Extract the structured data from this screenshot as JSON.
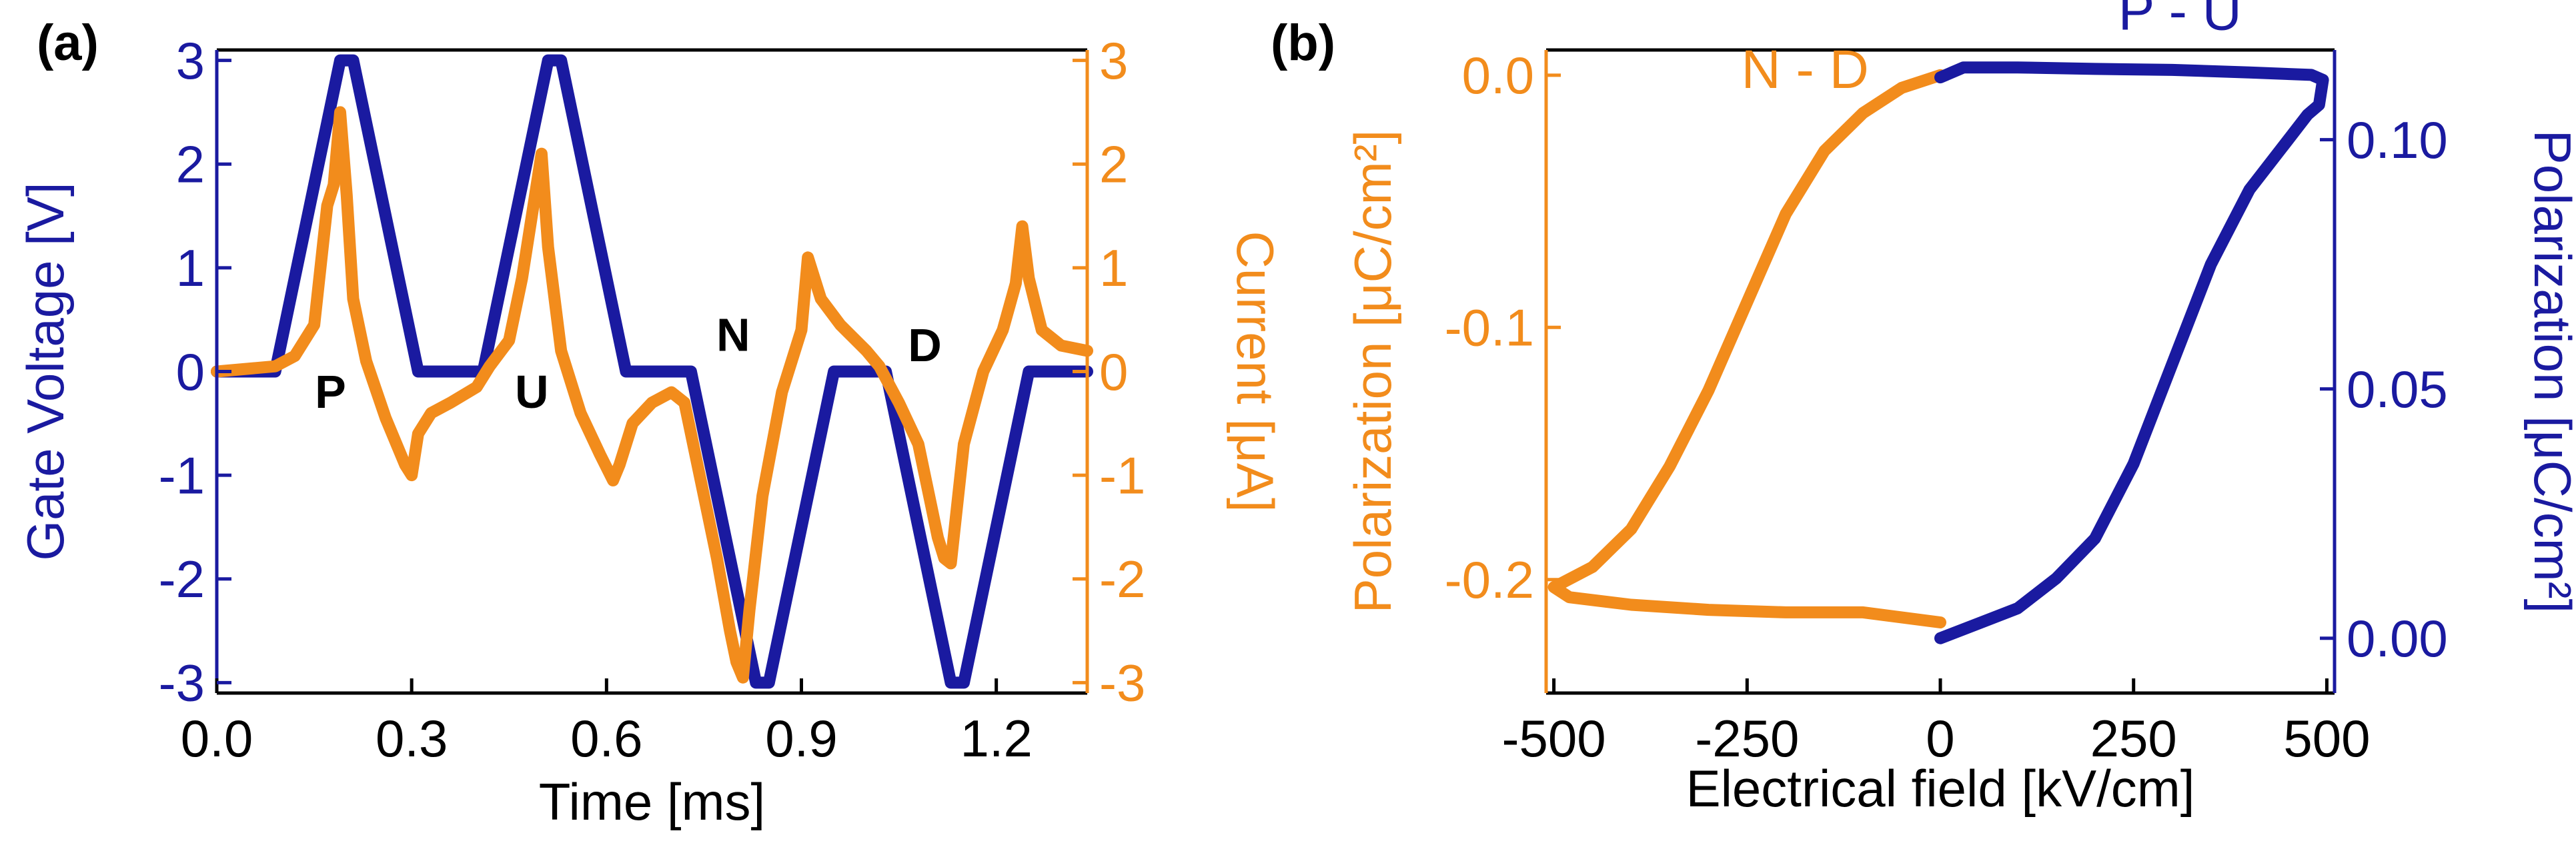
{
  "colors": {
    "blue": "#1a1aa0",
    "orange": "#f28c1c",
    "black": "#000000"
  },
  "chart_data": [
    {
      "type": "line",
      "panel_label": "(a)",
      "title": "",
      "xlabel": "Time [ms]",
      "ylabel_left": "Gate Voltage [V]",
      "ylabel_right": "Current [μA]",
      "xlim": [
        0.0,
        1.34
      ],
      "ylim_left": [
        -3.1,
        3.1
      ],
      "ylim_right": [
        -3.1,
        3.1
      ],
      "x_ticks": [
        "0.0",
        "0.3",
        "0.6",
        "0.9",
        "1.2"
      ],
      "x_tick_values": [
        0.0,
        0.3,
        0.6,
        0.9,
        1.2
      ],
      "y_ticks_left": [
        "-3",
        "-2",
        "-1",
        "0",
        "1",
        "2",
        "3"
      ],
      "y_ticks_right": [
        "-3",
        "-2",
        "-1",
        "0",
        "1",
        "2",
        "3"
      ],
      "annotations": [
        {
          "text": "P",
          "x": 0.175,
          "y": -0.35
        },
        {
          "text": "U",
          "x": 0.485,
          "y": -0.35
        },
        {
          "text": "N",
          "x": 0.795,
          "y": 0.2
        },
        {
          "text": "D",
          "x": 1.09,
          "y": 0.1
        }
      ],
      "series": [
        {
          "name": "Gate Voltage",
          "axis": "left",
          "color": "#1a1aa0",
          "x": [
            0.0,
            0.09,
            0.19,
            0.21,
            0.31,
            0.41,
            0.51,
            0.53,
            0.63,
            0.73,
            0.83,
            0.85,
            0.95,
            1.03,
            1.13,
            1.15,
            1.25,
            1.34
          ],
          "y": [
            0,
            0,
            3,
            3,
            0,
            0,
            3,
            3,
            0,
            0,
            -3,
            -3,
            0,
            0,
            -3,
            -3,
            0,
            0
          ]
        },
        {
          "name": "Current",
          "axis": "right",
          "color": "#f28c1c",
          "x": [
            0.0,
            0.09,
            0.12,
            0.15,
            0.17,
            0.18,
            0.19,
            0.2,
            0.21,
            0.23,
            0.26,
            0.29,
            0.3,
            0.31,
            0.33,
            0.36,
            0.4,
            0.42,
            0.45,
            0.47,
            0.49,
            0.5,
            0.51,
            0.53,
            0.56,
            0.59,
            0.61,
            0.62,
            0.64,
            0.67,
            0.7,
            0.72,
            0.74,
            0.77,
            0.79,
            0.8,
            0.81,
            0.82,
            0.84,
            0.87,
            0.9,
            0.91,
            0.93,
            0.96,
            1.0,
            1.02,
            1.05,
            1.08,
            1.1,
            1.11,
            1.12,
            1.13,
            1.15,
            1.18,
            1.21,
            1.23,
            1.24,
            1.25,
            1.27,
            1.3,
            1.34
          ],
          "y": [
            0.0,
            0.05,
            0.15,
            0.45,
            1.6,
            1.8,
            2.5,
            1.7,
            0.7,
            0.1,
            -0.45,
            -0.9,
            -1.0,
            -0.6,
            -0.4,
            -0.3,
            -0.15,
            0.05,
            0.3,
            0.9,
            1.7,
            2.1,
            1.2,
            0.2,
            -0.4,
            -0.8,
            -1.05,
            -0.9,
            -0.5,
            -0.3,
            -0.2,
            -0.3,
            -0.9,
            -1.8,
            -2.5,
            -2.8,
            -2.95,
            -2.3,
            -1.2,
            -0.2,
            0.4,
            1.1,
            0.7,
            0.45,
            0.2,
            0.05,
            -0.3,
            -0.7,
            -1.3,
            -1.6,
            -1.8,
            -1.85,
            -0.7,
            0.0,
            0.4,
            0.85,
            1.4,
            0.9,
            0.4,
            0.25,
            0.2
          ]
        }
      ]
    },
    {
      "type": "line",
      "panel_label": "(b)",
      "title": "",
      "xlabel": "Electrical field [kV/cm]",
      "ylabel_left": "Polarization [μC/cm²]",
      "ylabel_right": "Polarization [μC/cm²]",
      "xlim": [
        -510,
        510
      ],
      "ylim_left": [
        -0.245,
        0.01
      ],
      "ylim_right": [
        -0.011,
        0.118
      ],
      "x_ticks": [
        "-500",
        "-250",
        "0",
        "250",
        "500"
      ],
      "x_tick_values": [
        -500,
        -250,
        0,
        250,
        500
      ],
      "y_ticks_left": [
        "-0.2",
        "-0.1",
        "0.0"
      ],
      "y_tick_values_left": [
        -0.2,
        -0.1,
        0.0
      ],
      "y_ticks_right": [
        "0.00",
        "0.05",
        "0.10"
      ],
      "y_tick_values_right": [
        0.0,
        0.05,
        0.1
      ],
      "annotations": [
        {
          "text": "N - D",
          "x": -175,
          "y": -0.005,
          "color": "#f28c1c"
        },
        {
          "text": "P - U",
          "x": 310,
          "y": 0.018,
          "color": "#1a1aa0"
        }
      ],
      "series": [
        {
          "name": "N - D",
          "axis": "left",
          "color": "#f28c1c",
          "x": [
            0,
            -50,
            -100,
            -150,
            -200,
            -250,
            -300,
            -350,
            -400,
            -450,
            -500,
            -480,
            -400,
            -300,
            -200,
            -100,
            0
          ],
          "y": [
            0.0,
            -0.005,
            -0.015,
            -0.03,
            -0.055,
            -0.09,
            -0.125,
            -0.155,
            -0.18,
            -0.195,
            -0.203,
            -0.207,
            -0.21,
            -0.212,
            -0.213,
            -0.213,
            -0.217
          ]
        },
        {
          "name": "P - U",
          "axis": "right",
          "color": "#1a1aa0",
          "x": [
            0,
            50,
            100,
            150,
            200,
            250,
            300,
            350,
            400,
            450,
            475,
            490,
            495,
            480,
            400,
            300,
            200,
            100,
            30,
            0
          ],
          "y": [
            0.0,
            0.003,
            0.006,
            0.012,
            0.02,
            0.035,
            0.055,
            0.075,
            0.09,
            0.1,
            0.105,
            0.107,
            0.112,
            0.113,
            0.1135,
            0.114,
            0.1142,
            0.1145,
            0.1145,
            0.1125
          ]
        }
      ]
    }
  ]
}
